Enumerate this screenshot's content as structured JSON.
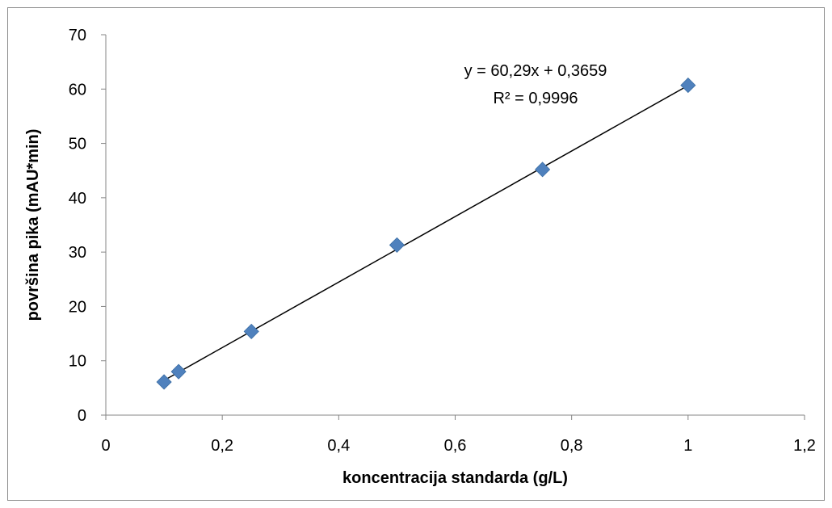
{
  "chart_data": {
    "type": "scatter",
    "title": "",
    "xlabel": "koncentracija standarda (g/L)",
    "ylabel": "površina pika (mAU*min)",
    "xlim": [
      0,
      1.2
    ],
    "ylim": [
      0,
      70
    ],
    "x_ticks": [
      "0",
      "0,2",
      "0,4",
      "0,6",
      "0,8",
      "1",
      "1,2"
    ],
    "y_ticks": [
      "0",
      "10",
      "20",
      "30",
      "40",
      "50",
      "60",
      "70"
    ],
    "grid": false,
    "legend": "none",
    "marker": "diamond",
    "marker_color": "#4f81bd",
    "series": [
      {
        "x": [
          0.1,
          0.125,
          0.25,
          0.5,
          0.75,
          1.0
        ],
        "y": [
          6.1,
          8.0,
          15.4,
          31.3,
          45.2,
          60.7
        ]
      }
    ],
    "trendline": {
      "type": "linear",
      "slope": 60.29,
      "intercept": 0.3659,
      "x_range": [
        0.1,
        1.0
      ],
      "color": "#000000",
      "equation_text": "y = 60,29x + 0,3659",
      "r2_text": "R² = 0,9996"
    }
  }
}
